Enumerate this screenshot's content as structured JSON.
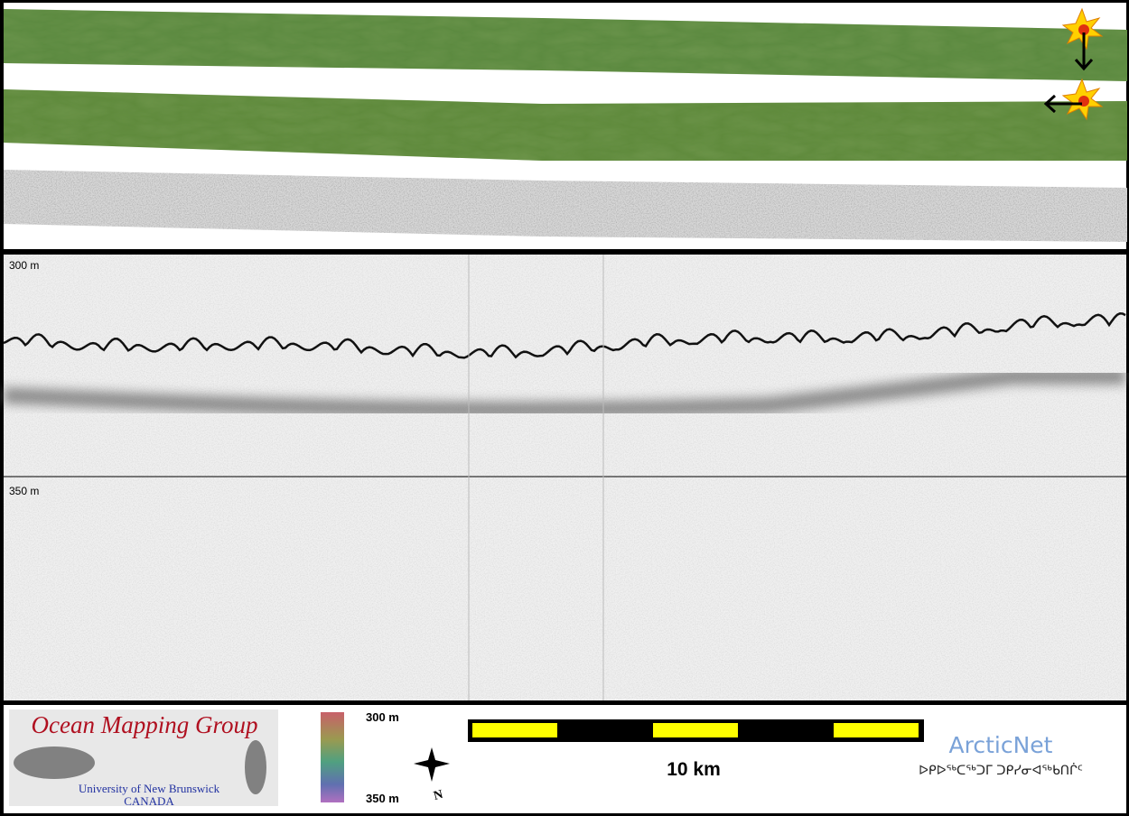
{
  "profile": {
    "depth_top": "300 m",
    "depth_bottom": "350 m"
  },
  "legend": {
    "logo_title": "Ocean Mapping Group",
    "logo_university": "University of New Brunswick",
    "logo_country": "CANADA",
    "colorbar_top": "300 m",
    "colorbar_bottom": "350 m",
    "north": "N",
    "scale": "10 km",
    "partner": "ArcticNet",
    "partner_syllabics": "ᐅᑭᐅᖅᑕᖅᑐᒥ ᑐᑭᓯᓂᐊᖅᑲᑎᒌᑦ"
  }
}
